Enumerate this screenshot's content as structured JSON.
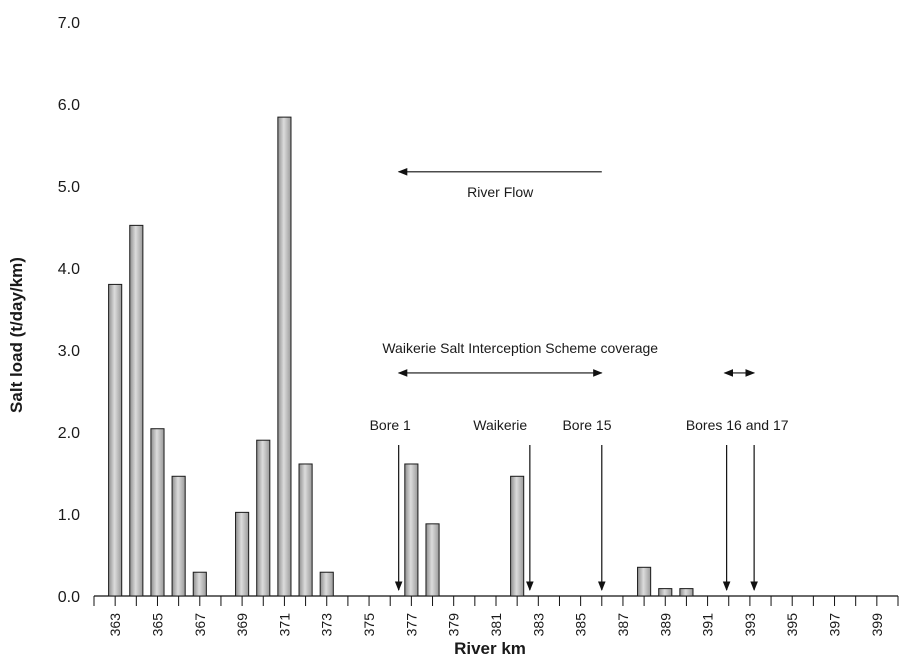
{
  "chart_data": {
    "type": "bar",
    "title": "",
    "xlabel": "River km",
    "ylabel": "Salt load (t/day/km)",
    "ylim": [
      0,
      7
    ],
    "yticks": [
      "0.0",
      "1.0",
      "2.0",
      "3.0",
      "4.0",
      "5.0",
      "6.0",
      "7.0"
    ],
    "xlim": [
      362,
      400
    ],
    "xticks": [
      "363",
      "365",
      "367",
      "369",
      "371",
      "373",
      "375",
      "377",
      "379",
      "381",
      "383",
      "385",
      "387",
      "389",
      "391",
      "393",
      "395",
      "397",
      "399"
    ],
    "grid": false,
    "legend": "none",
    "bar_color": "#b8b8b8",
    "points": [
      {
        "x": 363,
        "y": 3.8
      },
      {
        "x": 364,
        "y": 4.52
      },
      {
        "x": 365,
        "y": 2.04
      },
      {
        "x": 366,
        "y": 1.46
      },
      {
        "x": 367,
        "y": 0.29
      },
      {
        "x": 369,
        "y": 1.02
      },
      {
        "x": 370,
        "y": 1.9
      },
      {
        "x": 371,
        "y": 5.84
      },
      {
        "x": 372,
        "y": 1.61
      },
      {
        "x": 373,
        "y": 0.29
      },
      {
        "x": 377,
        "y": 1.61
      },
      {
        "x": 378,
        "y": 0.88
      },
      {
        "x": 382,
        "y": 1.46
      },
      {
        "x": 388,
        "y": 0.35
      },
      {
        "x": 389,
        "y": 0.09
      },
      {
        "x": 390,
        "y": 0.09
      }
    ],
    "annotations": {
      "river_flow": {
        "label": "River Flow",
        "from_x": 386,
        "to_x": 376.4,
        "y": 5.1
      },
      "coverage": {
        "label": "Waikerie Salt Interception Scheme coverage",
        "ranges": [
          [
            376.4,
            386
          ],
          [
            391.8,
            393.2
          ]
        ],
        "y": 2.72
      },
      "markers": [
        {
          "label": "Bore 1",
          "x": 376.4,
          "label_x": 376
        },
        {
          "label": "Waikerie",
          "x": 382.6,
          "label_x": 381.2
        },
        {
          "label": "Bore 15",
          "x": 386,
          "label_x": 385.3
        },
        {
          "label": "Bores 16 and 17",
          "x": 391.9,
          "label_x": 392.4
        },
        {
          "label": "",
          "x": 393.2,
          "label_x": 393.2
        }
      ]
    }
  }
}
